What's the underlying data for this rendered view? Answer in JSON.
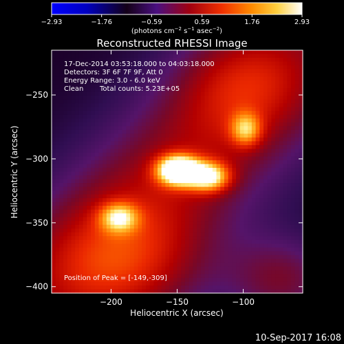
{
  "chart_data": {
    "type": "heatmap",
    "title": "Reconstructed RHESSI Image",
    "xlabel": "Heliocentric X (arcsec)",
    "ylabel": "Heliocentric Y (arcsec)",
    "xlim": [
      -245,
      -55
    ],
    "ylim": [
      -405,
      -215
    ],
    "x_ticks": [
      -200,
      -150,
      -100
    ],
    "x_tick_labels": [
      "−200",
      "−150",
      "−100"
    ],
    "y_ticks": [
      -250,
      -300,
      -350,
      -400
    ],
    "y_tick_labels": [
      "−250",
      "−300",
      "−350",
      "−400"
    ],
    "colorbar": {
      "range": [
        -2.93,
        2.93
      ],
      "ticks": [
        -2.93,
        -1.76,
        -0.59,
        0.59,
        1.76,
        2.93
      ],
      "tick_labels": [
        "−2.93",
        "−1.76",
        "−0.59",
        "0.59",
        "1.76",
        "2.93"
      ],
      "unit_label": "(photons cm",
      "unit_exp1": "−2",
      "unit_mid": " s",
      "unit_exp2": "−1",
      "unit_end": " asec",
      "unit_exp3": "−2",
      "unit_close": ")",
      "colormap": "RHESSI blue-black-purple-red-orange-yellow-white"
    },
    "sources": [
      {
        "x": -149,
        "y": -309,
        "sx": 11,
        "sy": 8,
        "amp": 1.0
      },
      {
        "x": -126,
        "y": -314,
        "sx": 11,
        "sy": 8,
        "amp": 0.68
      },
      {
        "x": -98,
        "y": -277,
        "sx": 8,
        "sy": 9,
        "amp": 0.45
      },
      {
        "x": -194,
        "y": -346,
        "sx": 10,
        "sy": 8,
        "amp": 0.5
      }
    ],
    "annotations": {
      "line1": "17-Dec-2014 03:53:18.000 to 04:03:18.000",
      "line2": "Detectors: 3F 6F 7F 9F, Att 0",
      "line3": "Energy Range: 3.0 - 6.0 keV",
      "line4_a": "Clean",
      "line4_b": "Total counts: 5.23E+05",
      "peak": "Position of Peak = [-149,-309]"
    }
  },
  "footer": {
    "timestamp": "10-Sep-2017 16:08"
  }
}
